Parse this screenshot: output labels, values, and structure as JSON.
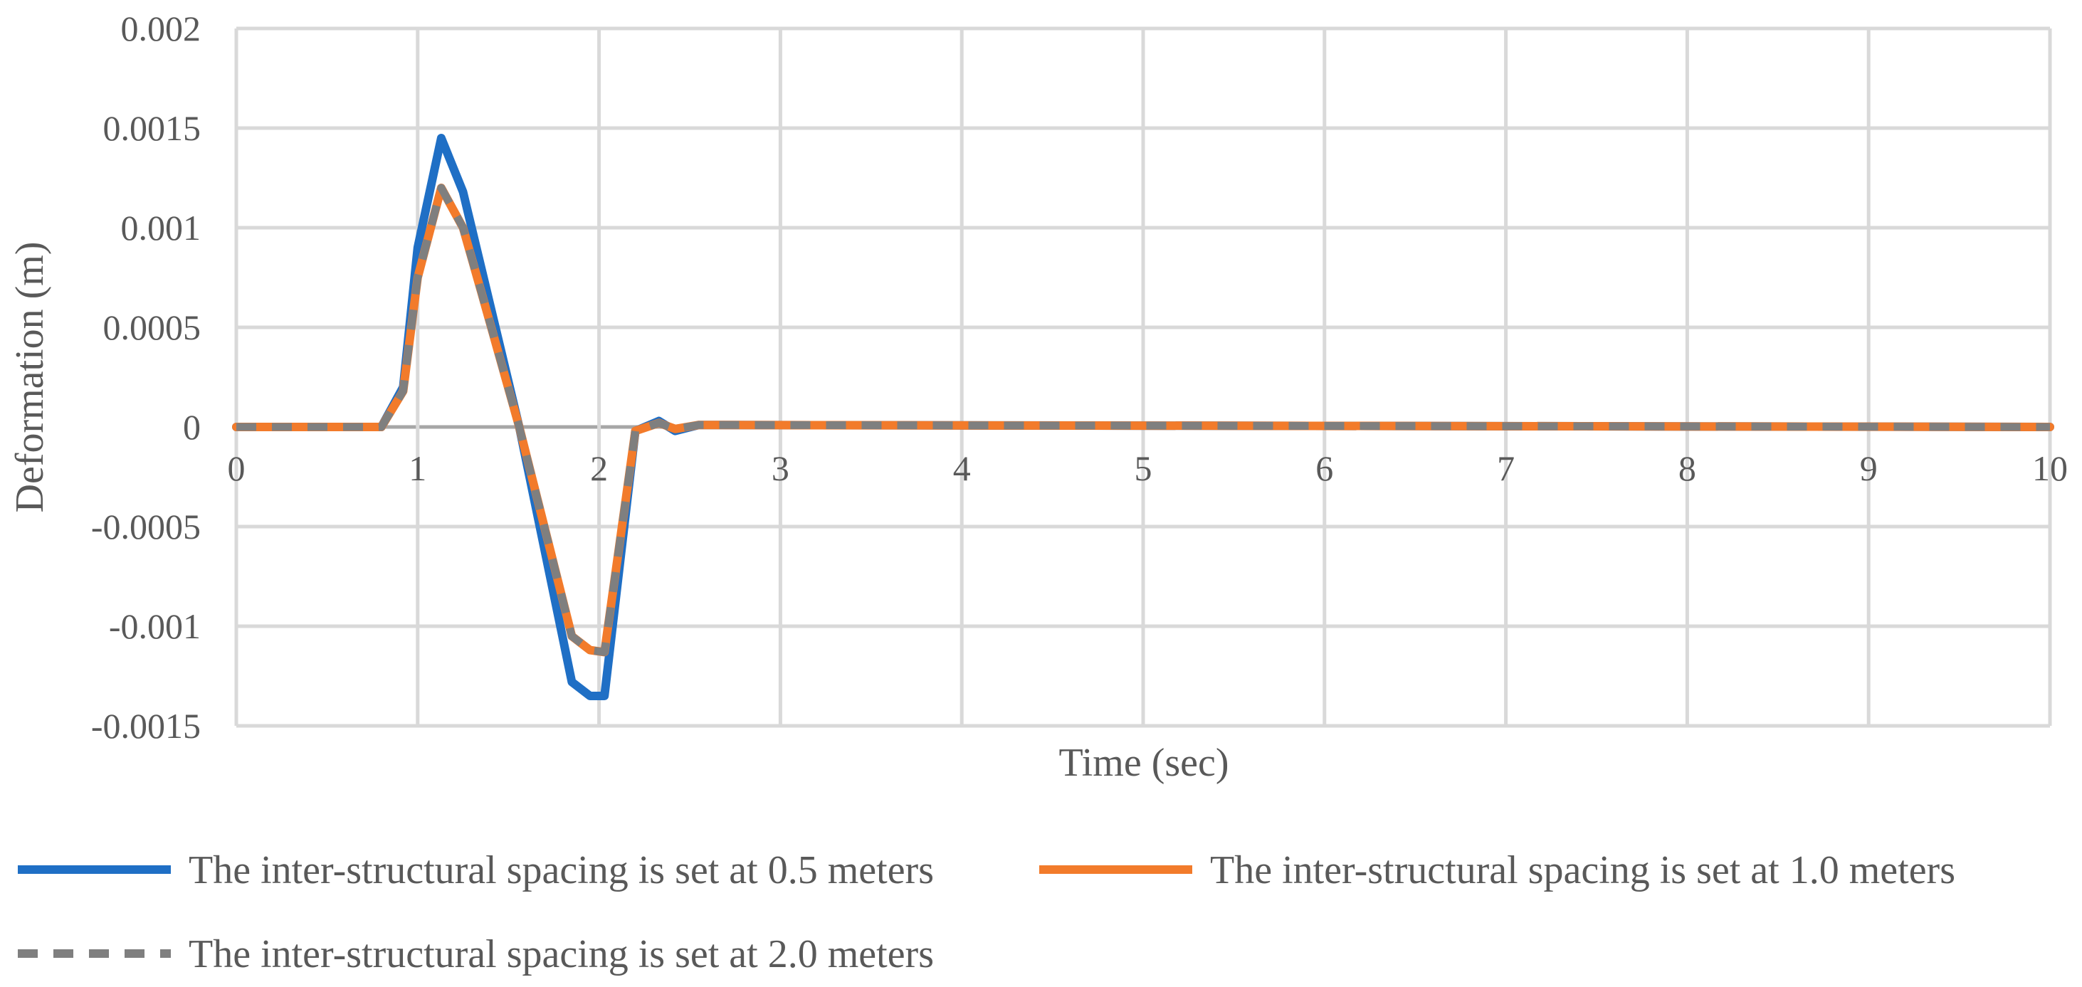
{
  "chart_data": {
    "type": "line",
    "xlabel": "Time (sec)",
    "ylabel": "Deformation (m)",
    "xlim": [
      0,
      10
    ],
    "ylim": [
      -0.0015,
      0.002
    ],
    "x_ticks": [
      "0",
      "1",
      "2",
      "3",
      "4",
      "5",
      "6",
      "7",
      "8",
      "9",
      "10"
    ],
    "y_ticks": [
      "0.002",
      "0.0015",
      "0.001",
      "0.0005",
      "0",
      "-0.0005",
      "-0.001",
      "-0.0015"
    ],
    "grid": true,
    "legend_position": "bottom",
    "series": [
      {
        "name": "The inter-structural spacing is set at 0.5 meters",
        "color": "#1f6fc5",
        "dash": "solid",
        "x": [
          0,
          0.8,
          0.92,
          1.0,
          1.13,
          1.25,
          1.35,
          1.56,
          1.85,
          1.95,
          2.03,
          2.2,
          2.33,
          2.42,
          2.55,
          10
        ],
        "y": [
          0,
          0,
          0.0002,
          0.0009,
          0.00145,
          0.00118,
          0.0008,
          0,
          -0.00128,
          -0.00135,
          -0.00135,
          -2e-05,
          3e-05,
          -2e-05,
          1e-05,
          0
        ]
      },
      {
        "name": "The inter-structural spacing is set at 1.0 meters",
        "color": "#f27b2b",
        "dash": "solid",
        "x": [
          0,
          0.8,
          0.92,
          1.0,
          1.13,
          1.25,
          1.35,
          1.56,
          1.85,
          1.95,
          2.03,
          2.2,
          2.33,
          2.42,
          2.55,
          10
        ],
        "y": [
          0,
          0,
          0.00018,
          0.00075,
          0.0012,
          0.001,
          0.00068,
          0,
          -0.00105,
          -0.00112,
          -0.00113,
          -2e-05,
          2e-05,
          -1e-05,
          1e-05,
          0
        ]
      },
      {
        "name": "The inter-structural spacing is set at 2.0 meters",
        "color": "#7f7f7f",
        "dash": "dashed",
        "x": [
          0,
          0.8,
          0.92,
          1.0,
          1.13,
          1.25,
          1.35,
          1.56,
          1.85,
          1.95,
          2.03,
          2.2,
          2.33,
          2.42,
          2.55,
          10
        ],
        "y": [
          0,
          0,
          0.00018,
          0.00075,
          0.0012,
          0.001,
          0.00068,
          0,
          -0.00105,
          -0.00112,
          -0.00113,
          -2e-05,
          2e-05,
          -1e-05,
          1e-05,
          0
        ]
      }
    ]
  }
}
